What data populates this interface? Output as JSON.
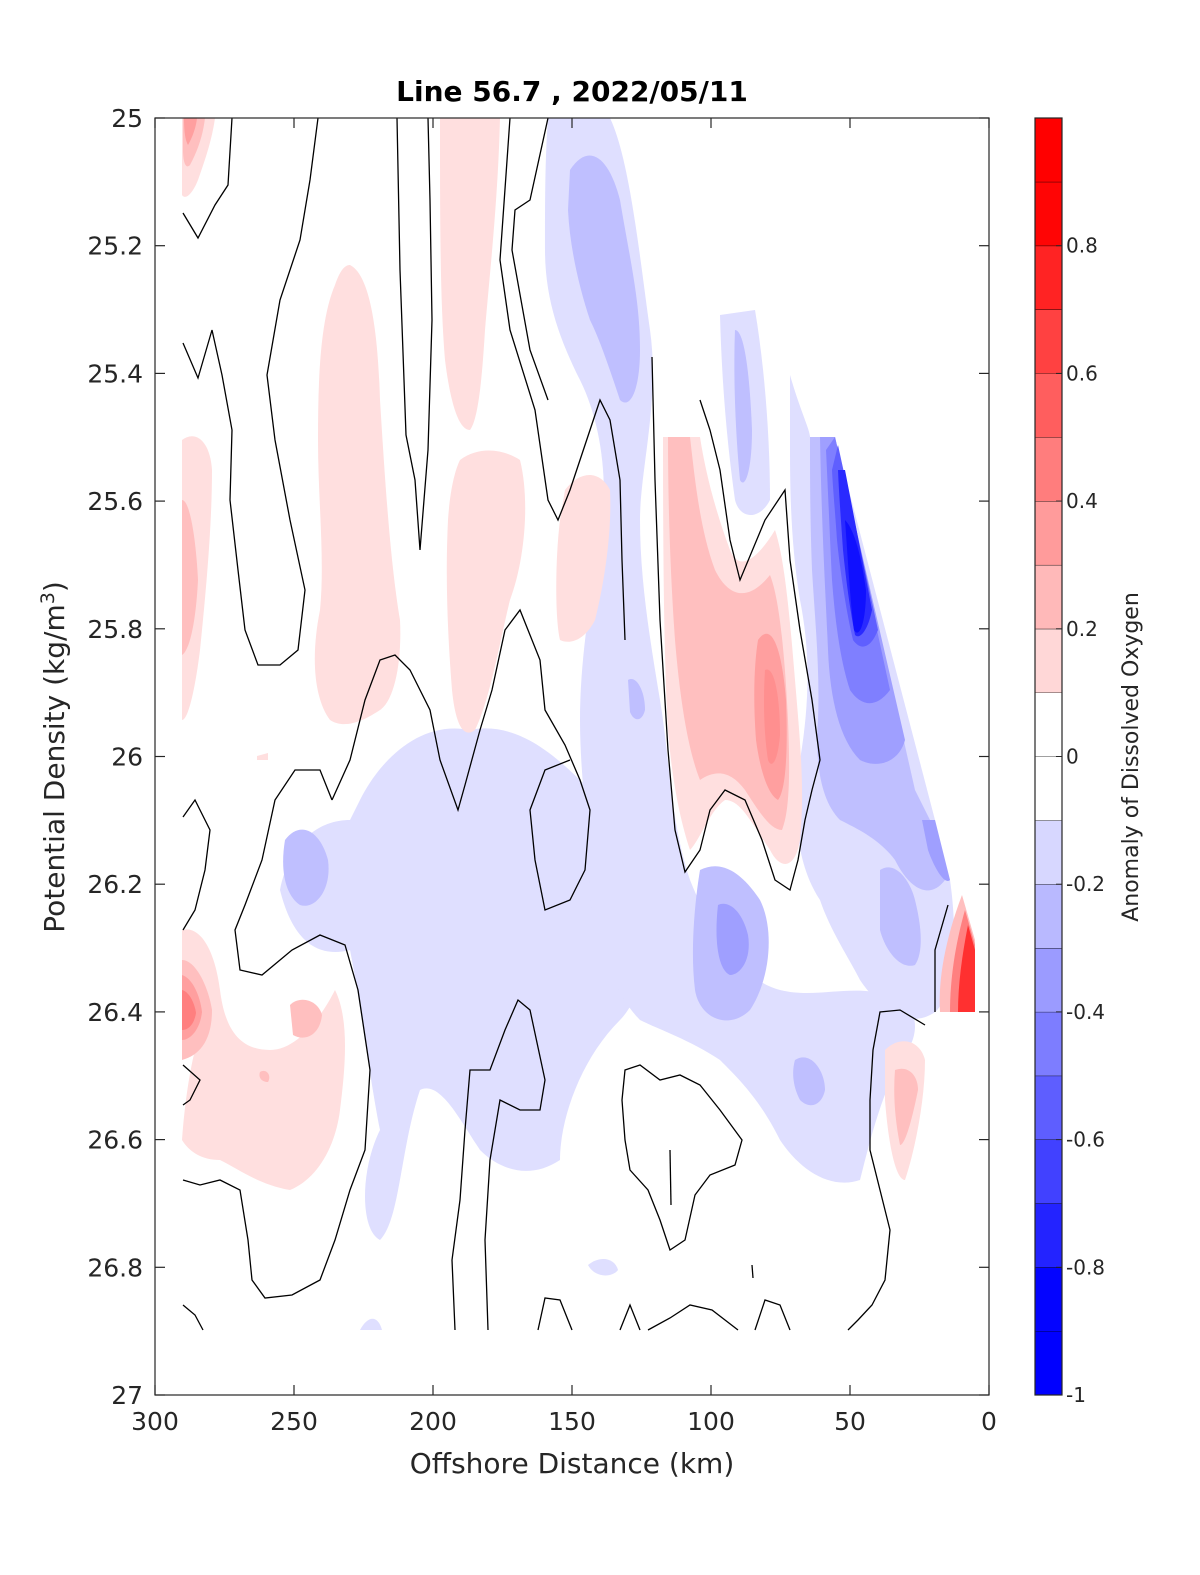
{
  "chart_data": {
    "type": "heatmap",
    "title": "Line 56.7 , 2022/05/11",
    "xlabel": "Offshore Distance (km)",
    "ylabel_main": "Potential Density (kg/m",
    "ylabel_sup": "3",
    "ylabel_close": ")",
    "xlim": [
      300,
      0
    ],
    "ylim": [
      25,
      27
    ],
    "x_reversed": true,
    "y_reversed": true,
    "xticks": [
      300,
      250,
      200,
      150,
      100,
      50,
      0
    ],
    "xtick_labels": [
      "300",
      "250",
      "200",
      "150",
      "100",
      "50",
      "0"
    ],
    "yticks": [
      25,
      25.2,
      25.4,
      25.6,
      25.8,
      26,
      26.2,
      26.4,
      26.6,
      26.8,
      27
    ],
    "ytick_labels": [
      "25",
      "25.2",
      "25.4",
      "25.6",
      "25.8",
      "26",
      "26.2",
      "26.4",
      "26.6",
      "26.8",
      "27"
    ],
    "colorbar": {
      "title": "Anomaly of Dissolved Oxygen",
      "range": [
        -1,
        1
      ],
      "ticks": [
        -1,
        -0.8,
        -0.6,
        -0.4,
        -0.2,
        0,
        0.2,
        0.4,
        0.6,
        0.8
      ],
      "tick_labels": [
        "-1",
        "-0.8",
        "-0.6",
        "-0.4",
        "-0.2",
        "0",
        "0.2",
        "0.4",
        "0.6",
        "0.8"
      ],
      "levels": 20,
      "neutral_band": [
        -0.1,
        0.1
      ],
      "neg_color": "#0000ff",
      "pos_color": "#ff0000",
      "mid_color": "#ffffff"
    },
    "zero_contour_color": "#000000",
    "features": [
      {
        "type": "positive",
        "peak": 0.9,
        "x": 8,
        "y": 26.33
      },
      {
        "type": "negative",
        "peak": -0.9,
        "x": 48,
        "y": 25.82
      },
      {
        "type": "positive",
        "peak": 0.45,
        "x": 77,
        "y": 25.92
      },
      {
        "type": "negative",
        "peak": -0.35,
        "x": 93,
        "y": 26.3
      },
      {
        "type": "positive",
        "peak": 0.5,
        "x": 290,
        "y": 26.4
      },
      {
        "type": "negative",
        "peak": -0.3,
        "x": 127,
        "y": 25.35
      }
    ]
  }
}
